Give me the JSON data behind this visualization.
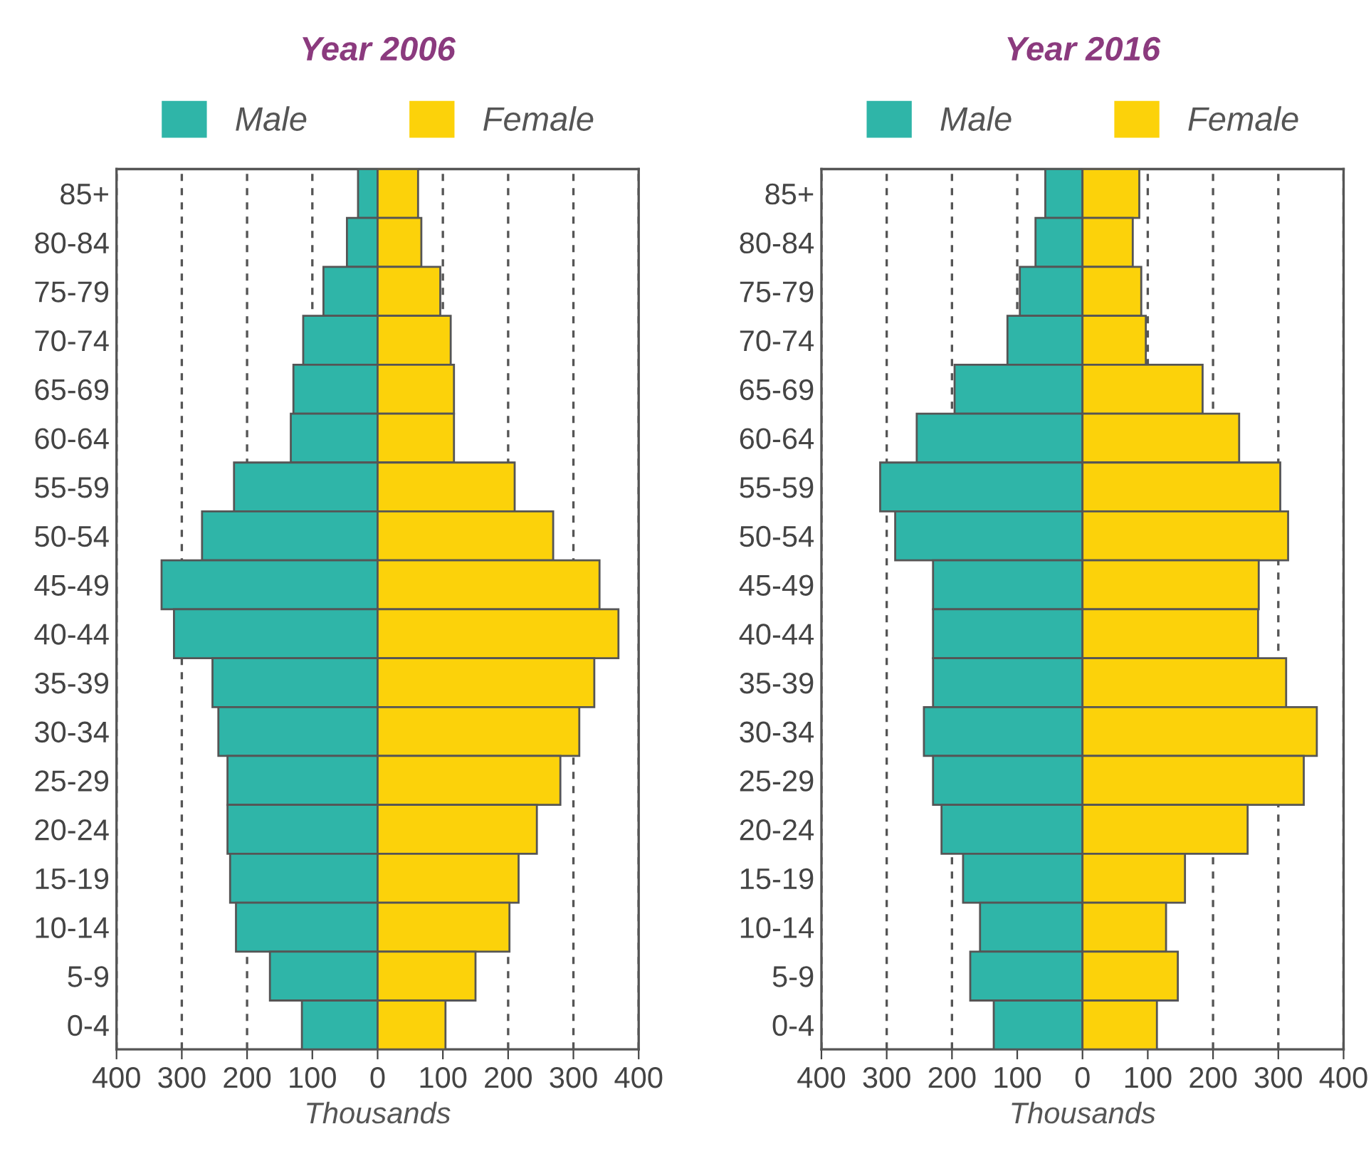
{
  "chart_data": [
    {
      "type": "bar",
      "title": "Year 2006",
      "xlabel": "Thousands",
      "orientation": "horizontal",
      "stacked": true,
      "legend": "top",
      "grid": "x",
      "categories": [
        "85+",
        "80-84",
        "75-79",
        "70-74",
        "65-69",
        "60-64",
        "55-59",
        "50-54",
        "45-49",
        "40-44",
        "35-39",
        "30-34",
        "25-29",
        "20-24",
        "15-19",
        "10-14",
        "5-9",
        "0-4"
      ],
      "xlim": [
        -400,
        400
      ],
      "xticks": [
        {
          "value": -400,
          "label": "400"
        },
        {
          "value": -300,
          "label": "300"
        },
        {
          "value": -200,
          "label": "200"
        },
        {
          "value": -100,
          "label": "100"
        },
        0,
        100,
        200,
        300,
        400
      ],
      "series": [
        {
          "name": "Male",
          "color": "#2fb5a8",
          "values": [
            -30,
            -47,
            -83,
            -114,
            -129,
            -133,
            -220,
            -269,
            -331,
            -312,
            -253,
            -244,
            -230,
            -230,
            -226,
            -217,
            -165,
            -116
          ]
        },
        {
          "name": "Female",
          "color": "#fcd20a",
          "values": [
            62,
            67,
            96,
            112,
            117,
            117,
            210,
            269,
            340,
            369,
            332,
            309,
            280,
            244,
            216,
            202,
            150,
            104
          ]
        }
      ]
    },
    {
      "type": "bar",
      "title": "Year 2016",
      "xlabel": "Thousands",
      "orientation": "horizontal",
      "stacked": true,
      "legend": "top",
      "grid": "x",
      "categories": [
        "85+",
        "80-84",
        "75-79",
        "70-74",
        "65-69",
        "60-64",
        "55-59",
        "50-54",
        "45-49",
        "40-44",
        "35-39",
        "30-34",
        "25-29",
        "20-24",
        "15-19",
        "10-14",
        "5-9",
        "0-4"
      ],
      "xlim": [
        -400,
        400
      ],
      "xticks": [
        {
          "value": -400,
          "label": "400"
        },
        {
          "value": -300,
          "label": "300"
        },
        {
          "value": -200,
          "label": "200"
        },
        {
          "value": -100,
          "label": "100"
        },
        0,
        100,
        200,
        300,
        400
      ],
      "series": [
        {
          "name": "Male",
          "color": "#2fb5a8",
          "values": [
            -57,
            -72,
            -96,
            -115,
            -196,
            -254,
            -310,
            -287,
            -229,
            -229,
            -229,
            -243,
            -229,
            -216,
            -183,
            -157,
            -172,
            -136
          ]
        },
        {
          "name": "Female",
          "color": "#fcd20a",
          "values": [
            87,
            77,
            90,
            97,
            184,
            240,
            303,
            315,
            270,
            269,
            312,
            359,
            339,
            253,
            157,
            128,
            146,
            114
          ]
        }
      ]
    }
  ]
}
